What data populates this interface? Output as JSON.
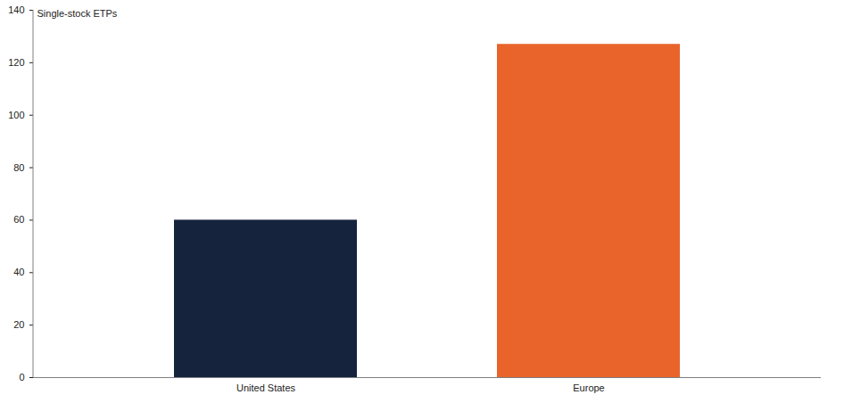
{
  "chart_data": {
    "type": "bar",
    "y_label": "Single-stock ETPs",
    "categories": [
      "United States",
      "Europe"
    ],
    "values": [
      60,
      127
    ],
    "colors": [
      "#15233d",
      "#e8642a"
    ],
    "ylim": [
      0,
      140
    ],
    "yticks": [
      0,
      20,
      40,
      60,
      80,
      100,
      120,
      140
    ],
    "grid": false
  }
}
